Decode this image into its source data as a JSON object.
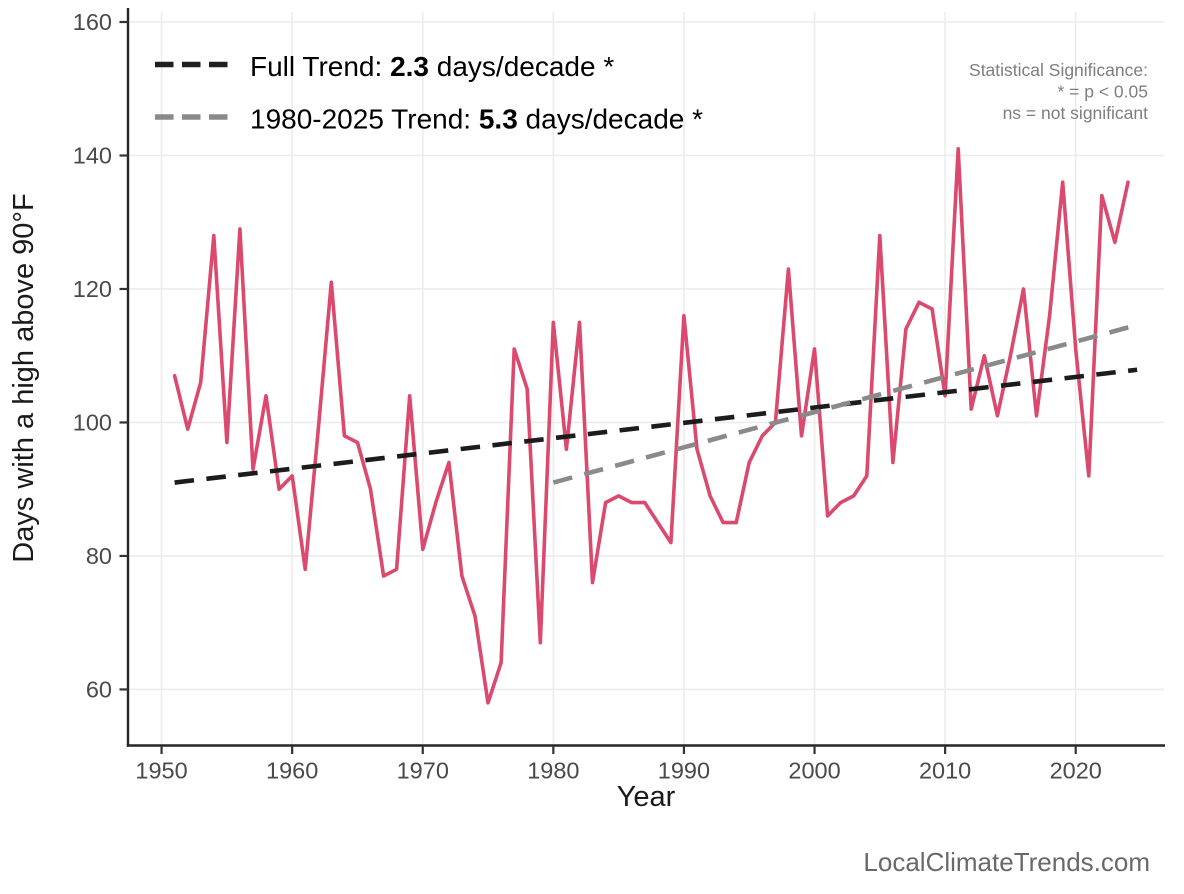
{
  "legend": {
    "rows": [
      {
        "prefix": "Full Trend: ",
        "value": "2.3",
        "suffix": " days/decade *",
        "color": "#1f1f1f"
      },
      {
        "prefix": "1980-2025 Trend: ",
        "value": "5.3",
        "suffix": " days/decade *",
        "color": "#8a8a8a"
      }
    ]
  },
  "significance_note": {
    "line1": "Statistical Significance:",
    "line2": "* = p < 0.05",
    "line3": "ns = not significant"
  },
  "watermark": "LocalClimateTrends.com",
  "colors": {
    "series": "#db4a6e",
    "full_trend": "#1c1c1c",
    "recent_trend": "#8a8a8a",
    "grid": "#ececec",
    "axis": "#262626",
    "tick_label": "#4a4a4a"
  },
  "chart_data": {
    "type": "line",
    "title": "",
    "xlabel": "Year",
    "ylabel": "Days with a high above 90°F",
    "x_ticks": [
      1950,
      1960,
      1970,
      1980,
      1990,
      2000,
      2010,
      2020
    ],
    "y_ticks": [
      60,
      80,
      100,
      120,
      140,
      160
    ],
    "xlim": [
      1947.43,
      2026.76
    ],
    "ylim": [
      51.6,
      161.5
    ],
    "grid": true,
    "legend_position": "top-left",
    "series": [
      {
        "name": "Days with a high above 90°F",
        "color": "#db4a6e",
        "x": [
          1951,
          1952,
          1953,
          1954,
          1955,
          1956,
          1957,
          1958,
          1959,
          1960,
          1961,
          1962,
          1963,
          1964,
          1965,
          1966,
          1967,
          1968,
          1969,
          1970,
          1971,
          1972,
          1973,
          1974,
          1975,
          1976,
          1977,
          1978,
          1979,
          1980,
          1981,
          1982,
          1983,
          1984,
          1985,
          1986,
          1987,
          1988,
          1989,
          1990,
          1991,
          1992,
          1993,
          1994,
          1995,
          1996,
          1997,
          1998,
          1999,
          2000,
          2001,
          2002,
          2003,
          2004,
          2005,
          2006,
          2007,
          2008,
          2009,
          2010,
          2011,
          2012,
          2013,
          2014,
          2015,
          2016,
          2017,
          2018,
          2019,
          2020,
          2021,
          2022,
          2023,
          2024
        ],
        "values": [
          107,
          99,
          106,
          128,
          97,
          129,
          93,
          104,
          90,
          92,
          78,
          99,
          121,
          98,
          97,
          90,
          77,
          78,
          104,
          81,
          88,
          94,
          77,
          71,
          58,
          64,
          111,
          105,
          67,
          115,
          96,
          115,
          76,
          88,
          89,
          88,
          88,
          85,
          82,
          116,
          96,
          89,
          85,
          85,
          94,
          98,
          100,
          123,
          98,
          111,
          86,
          88,
          89,
          92,
          128,
          94,
          114,
          118,
          117,
          104,
          141,
          102,
          110,
          101,
          110,
          120,
          101,
          116,
          136,
          111,
          92,
          134,
          127,
          136
        ]
      }
    ],
    "trend_lines": [
      {
        "name": "Full Trend",
        "slope_days_per_decade": 2.3,
        "significant": true,
        "x_start": 1951,
        "y_start": 91.0,
        "x_end": 2024.7,
        "y_end": 107.9,
        "color": "#1c1c1c",
        "dashed": true
      },
      {
        "name": "1980-2025 Trend",
        "slope_days_per_decade": 5.3,
        "significant": true,
        "x_start": 1980,
        "y_start": 91.0,
        "x_end": 2024.7,
        "y_end": 114.6,
        "color": "#8a8a8a",
        "dashed": true
      }
    ]
  }
}
